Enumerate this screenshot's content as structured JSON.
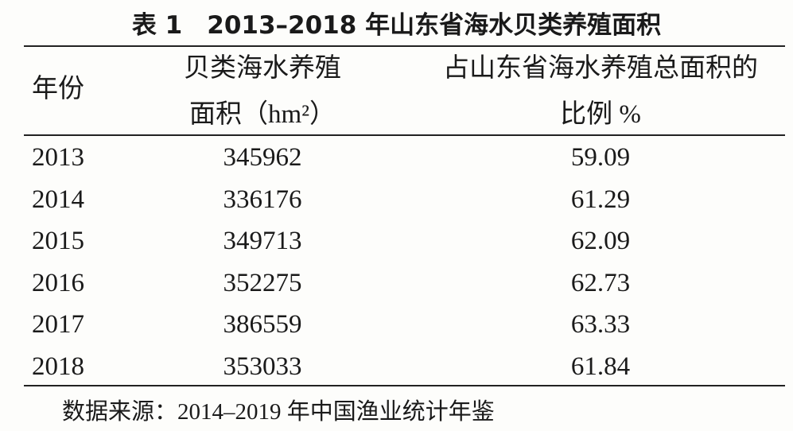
{
  "title": "表 1　2013–2018 年山东省海水贝类养殖面积",
  "table": {
    "header": [
      [
        "年份"
      ],
      [
        "贝类海水养殖",
        "面积（hm²）"
      ],
      [
        "占山东省海水养殖总面积的",
        "比例 %"
      ]
    ],
    "rows": [
      [
        "2013",
        345962,
        59.09
      ],
      [
        "2014",
        336176,
        61.29
      ],
      [
        "2015",
        349713,
        62.09
      ],
      [
        "2016",
        352275,
        62.73
      ],
      [
        "2017",
        386559,
        63.33
      ],
      [
        "2018",
        353033,
        61.84
      ]
    ]
  },
  "source": "数据来源：2014–2019 年中国渔业统计年鉴"
}
